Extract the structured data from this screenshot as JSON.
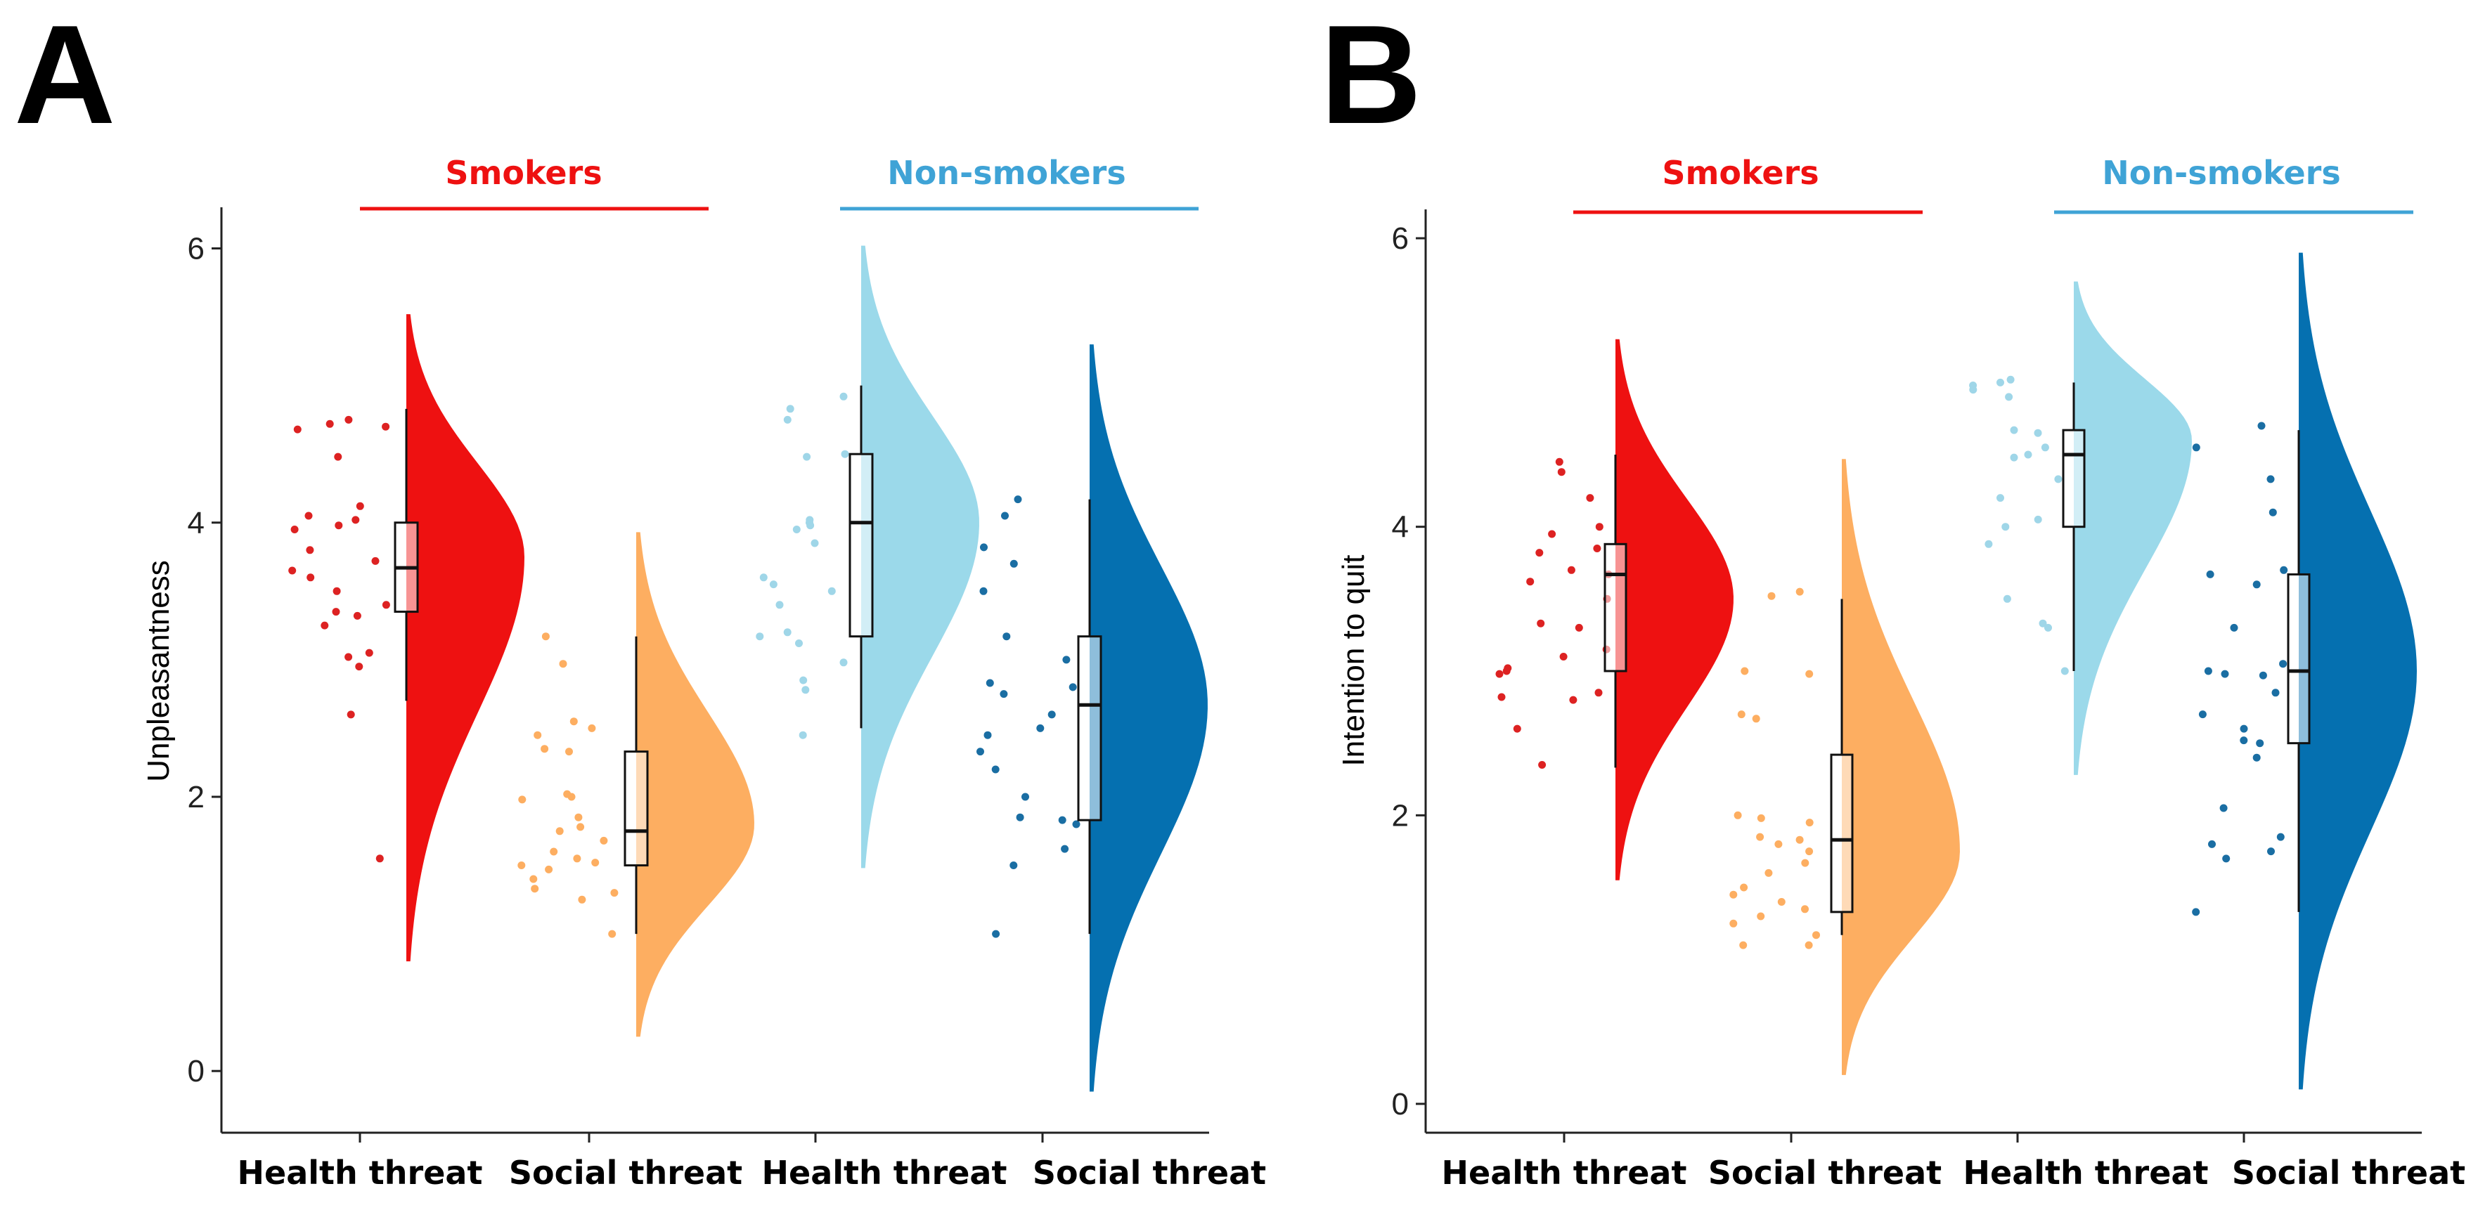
{
  "chart_data": [
    {
      "type": "raincloud",
      "panel_label": "A",
      "ylabel": "Unpleasantness",
      "ylim": [
        -0.45,
        6.3
      ],
      "yticks": [
        0,
        2,
        4,
        6
      ],
      "categories": [
        "Health threat",
        "Social threat",
        "Health threat",
        "Social threat"
      ],
      "groups": [
        {
          "name": "Smokers",
          "color": "#ee1111",
          "categories": [
            0,
            1
          ]
        },
        {
          "name": "Non-smokers",
          "color": "#3fa3d6",
          "categories": [
            2,
            3
          ]
        }
      ],
      "series": [
        {
          "name": "Smokers - Health threat",
          "color": "#ee1111",
          "points_color": "#dd2222",
          "box": {
            "whisker_low": 2.7,
            "q1": 3.35,
            "median": 3.67,
            "q3": 4.0,
            "whisker_high": 4.83
          },
          "density": {
            "min": 0.8,
            "max": 5.52,
            "mode": 3.75,
            "sd": 0.55,
            "width": 1.0
          },
          "points": [
            4.7,
            4.68,
            4.75,
            4.72,
            4.48,
            4.02,
            4.05,
            4.12,
            3.98,
            3.95,
            3.8,
            3.72,
            3.65,
            3.6,
            3.5,
            3.4,
            3.35,
            3.32,
            3.25,
            3.05,
            3.02,
            2.95,
            2.6,
            1.55
          ]
        },
        {
          "name": "Smokers - Social threat",
          "color": "#fdae61",
          "points_color": "#fdae61",
          "box": {
            "whisker_low": 1.0,
            "q1": 1.5,
            "median": 1.75,
            "q3": 2.33,
            "whisker_high": 3.17
          },
          "density": {
            "min": 0.25,
            "max": 3.93,
            "mode": 1.8,
            "sd": 0.45,
            "width": 1.0
          },
          "points": [
            3.17,
            2.97,
            2.55,
            2.5,
            2.45,
            2.35,
            2.33,
            2.02,
            2.0,
            1.98,
            1.85,
            1.78,
            1.75,
            1.68,
            1.6,
            1.55,
            1.52,
            1.5,
            1.47,
            1.4,
            1.33,
            1.3,
            1.25,
            1.0
          ]
        },
        {
          "name": "Non-smokers - Health threat",
          "color": "#9bd9ea",
          "points_color": "#9fd6e8",
          "box": {
            "whisker_low": 2.5,
            "q1": 3.17,
            "median": 4.0,
            "q3": 4.5,
            "whisker_high": 5.0
          },
          "density": {
            "min": 1.48,
            "max": 6.02,
            "mode": 4.0,
            "sd": 0.6,
            "width": 1.0
          },
          "points": [
            4.92,
            4.83,
            4.75,
            4.5,
            4.48,
            4.02,
            4.0,
            3.98,
            3.95,
            3.85,
            3.6,
            3.55,
            3.5,
            3.4,
            3.2,
            3.17,
            3.12,
            2.98,
            2.85,
            2.78,
            2.45
          ]
        },
        {
          "name": "Non-smokers - Social threat",
          "color": "#0570b0",
          "points_color": "#1a6ea3",
          "box": {
            "whisker_low": 1.0,
            "q1": 1.83,
            "median": 2.67,
            "q3": 3.17,
            "whisker_high": 4.17
          },
          "density": {
            "min": -0.15,
            "max": 5.3,
            "mode": 2.67,
            "sd": 0.7,
            "width": 1.0
          },
          "points": [
            4.17,
            4.05,
            3.82,
            3.7,
            3.5,
            3.17,
            3.0,
            2.83,
            2.8,
            2.75,
            2.6,
            2.5,
            2.45,
            2.33,
            2.2,
            2.0,
            1.85,
            1.83,
            1.8,
            1.62,
            1.5,
            1.0
          ]
        }
      ]
    },
    {
      "type": "raincloud",
      "panel_label": "B",
      "ylabel": "Intention to quit",
      "ylim": [
        -0.2,
        6.2
      ],
      "yticks": [
        0,
        2,
        4,
        6
      ],
      "categories": [
        "Health threat",
        "Social threat",
        "Health threat",
        "Social threat"
      ],
      "groups": [
        {
          "name": "Smokers",
          "color": "#ee1111",
          "categories": [
            0,
            1
          ]
        },
        {
          "name": "Non-smokers",
          "color": "#3fa3d6",
          "categories": [
            2,
            3
          ]
        }
      ],
      "series": [
        {
          "name": "Smokers - Health threat",
          "color": "#ee1111",
          "points_color": "#dd2222",
          "box": {
            "whisker_low": 2.33,
            "q1": 3.0,
            "median": 3.67,
            "q3": 3.88,
            "whisker_high": 4.5
          },
          "density": {
            "min": 1.55,
            "max": 5.3,
            "mode": 3.5,
            "sd": 0.6,
            "width": 1.0
          },
          "points": [
            4.45,
            4.38,
            4.2,
            4.0,
            3.95,
            3.85,
            3.82,
            3.7,
            3.67,
            3.62,
            3.5,
            3.33,
            3.3,
            3.15,
            3.1,
            3.02,
            3.0,
            2.98,
            2.85,
            2.82,
            2.8,
            2.6,
            2.35
          ]
        },
        {
          "name": "Smokers - Social threat",
          "color": "#fdae61",
          "points_color": "#fdae61",
          "box": {
            "whisker_low": 1.17,
            "q1": 1.33,
            "median": 1.83,
            "q3": 2.42,
            "whisker_high": 3.5
          },
          "density": {
            "min": 0.2,
            "max": 4.47,
            "mode": 1.75,
            "sd": 0.55,
            "width": 1.0
          },
          "points": [
            3.55,
            3.52,
            3.0,
            2.98,
            2.7,
            2.67,
            2.0,
            1.98,
            1.95,
            1.85,
            1.83,
            1.8,
            1.75,
            1.67,
            1.6,
            1.5,
            1.45,
            1.4,
            1.35,
            1.3,
            1.25,
            1.17,
            1.1,
            1.1
          ]
        },
        {
          "name": "Non-smokers - Health threat",
          "color": "#9bd9ea",
          "points_color": "#9fd6e8",
          "box": {
            "whisker_low": 3.0,
            "q1": 4.0,
            "median": 4.5,
            "q3": 4.67,
            "whisker_high": 5.0
          },
          "density": {
            "min": 2.28,
            "max": 5.7,
            "mode": 4.6,
            "sd": 0.5,
            "width": 1.0
          },
          "points": [
            5.02,
            5.0,
            4.98,
            4.95,
            4.9,
            4.67,
            4.65,
            4.55,
            4.5,
            4.48,
            4.33,
            4.2,
            4.05,
            4.0,
            3.88,
            3.5,
            3.33,
            3.3,
            3.0
          ]
        },
        {
          "name": "Non-smokers - Social threat",
          "color": "#0570b0",
          "points_color": "#1a6ea3",
          "box": {
            "whisker_low": 1.33,
            "q1": 2.5,
            "median": 3.0,
            "q3": 3.67,
            "whisker_high": 4.67
          },
          "density": {
            "min": 0.1,
            "max": 5.9,
            "mode": 3.0,
            "sd": 0.75,
            "width": 1.0
          },
          "points": [
            4.7,
            4.55,
            4.33,
            4.1,
            3.7,
            3.67,
            3.6,
            3.3,
            3.05,
            3.0,
            2.98,
            2.97,
            2.85,
            2.7,
            2.6,
            2.52,
            2.5,
            2.4,
            2.05,
            1.85,
            1.8,
            1.75,
            1.7,
            1.33
          ]
        }
      ]
    }
  ]
}
